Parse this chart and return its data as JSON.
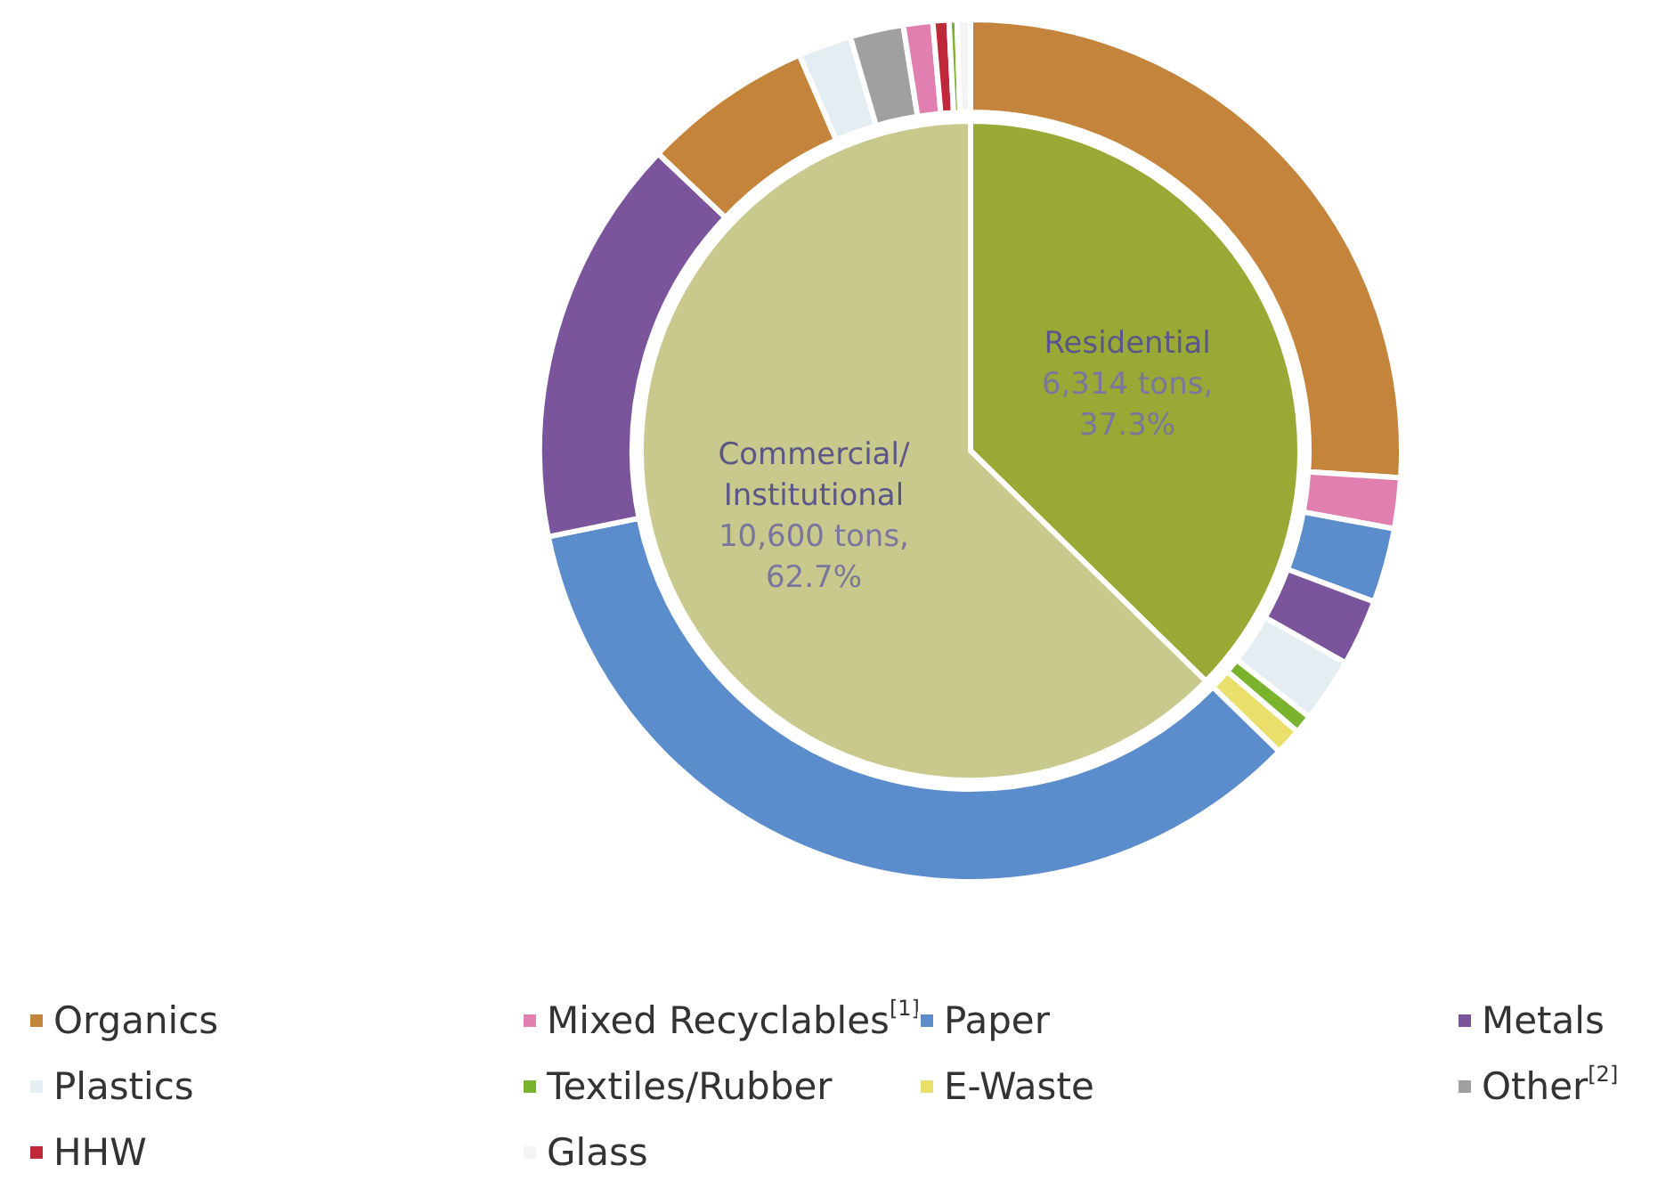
{
  "chart_data": [
    {
      "type": "pie",
      "categories": [
        "Residential",
        "Commercial/\nInstitutional"
      ],
      "values": [
        6314,
        10600
      ],
      "value_labels": [
        "6,314 tons,\n37.3%",
        "10,600 tons,\n62.7%"
      ],
      "colors": [
        "#9aa935",
        "#c9c98e"
      ]
    },
    {
      "type": "donut",
      "legend": "bottom",
      "categories": [
        "Organics",
        "Mixed Recyclables$^{[1]}$",
        "Paper",
        "Metals",
        "Plastics",
        "Textiles/Rubber",
        "E-Waste",
        null,
        null,
        null,
        null,
        "Other$^{[2]}$",
        null,
        "HHW",
        null,
        "Glass"
      ],
      "values": [
        26.0,
        1.9,
        2.8,
        2.5,
        2.4,
        0.7,
        1.0,
        34.5,
        15.3,
        6.4,
        2.0,
        2.0,
        1.1,
        0.6,
        0.3,
        0.5
      ],
      "colors": [
        "#c5843c",
        "#e07fb0",
        "#5b8ccc",
        "#7a559c",
        "#e4edf2",
        "#7ab32e",
        "#e9df6a",
        "#5b8ccc",
        "#7a559c",
        "#c5843c",
        "#e4edf2",
        "#a0a0a0",
        "#e07fb0",
        "#c0283a",
        "#7ab32e",
        "#f4f4f4"
      ]
    }
  ]
}
